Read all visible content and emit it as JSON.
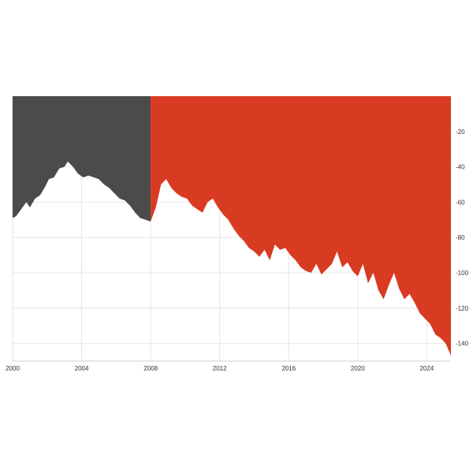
{
  "chart_data": {
    "type": "area",
    "title": "",
    "xlabel": "",
    "ylabel": "",
    "xlim": [
      2000,
      2025.4
    ],
    "ylim": [
      -150,
      0
    ],
    "x_ticks": [
      "2000",
      "2004",
      "2008",
      "2012",
      "2016",
      "2020",
      "2024"
    ],
    "y_ticks": [
      "-20",
      "-40",
      "-60",
      "-80",
      "-100",
      "-120",
      "-140"
    ],
    "grid": true,
    "axis_side": "right",
    "series": [
      {
        "color": "#4d4a4b",
        "x": [
          2000.0,
          2000.2,
          2000.5,
          2000.8,
          2001.0,
          2001.3,
          2001.6,
          2001.9,
          2002.1,
          2002.4,
          2002.7,
          2003.0,
          2003.2,
          2003.5,
          2003.8,
          2004.1,
          2004.4,
          2004.7,
          2005.0,
          2005.3,
          2005.6,
          2005.9,
          2006.2,
          2006.5,
          2006.8,
          2007.1,
          2007.4,
          2007.7,
          2008.0
        ],
        "values": [
          -69,
          -68,
          -64,
          -60,
          -63,
          -58,
          -56,
          -51,
          -47,
          -46,
          -41,
          -40,
          -37,
          -40,
          -44,
          -46,
          -45,
          -46,
          -47,
          -50,
          -52,
          -55,
          -58,
          -59,
          -62,
          -66,
          -69,
          -70,
          -71
        ]
      },
      {
        "color": "#d83b21",
        "x": [
          2008.0,
          2008.3,
          2008.6,
          2008.9,
          2009.2,
          2009.5,
          2009.8,
          2010.1,
          2010.4,
          2010.7,
          2011.0,
          2011.3,
          2011.6,
          2011.9,
          2012.2,
          2012.5,
          2012.8,
          2013.1,
          2013.4,
          2013.7,
          2014.0,
          2014.3,
          2014.6,
          2014.9,
          2015.2,
          2015.5,
          2015.8,
          2016.1,
          2016.4,
          2016.7,
          2017.0,
          2017.3,
          2017.6,
          2017.9,
          2018.2,
          2018.5,
          2018.8,
          2019.1,
          2019.4,
          2019.7,
          2020.0,
          2020.3,
          2020.6,
          2020.9,
          2021.2,
          2021.5,
          2021.8,
          2022.1,
          2022.4,
          2022.7,
          2023.0,
          2023.3,
          2023.6,
          2023.9,
          2024.2,
          2024.5,
          2024.8,
          2025.1,
          2025.4
        ],
        "values": [
          -71,
          -63,
          -50,
          -47,
          -52,
          -55,
          -57,
          -58,
          -62,
          -64,
          -66,
          -60,
          -58,
          -63,
          -67,
          -70,
          -75,
          -79,
          -82,
          -86,
          -88,
          -91,
          -87,
          -93,
          -84,
          -87,
          -86,
          -90,
          -93,
          -97,
          -99,
          -100,
          -95,
          -101,
          -98,
          -95,
          -88,
          -97,
          -94,
          -99,
          -102,
          -95,
          -106,
          -100,
          -110,
          -115,
          -107,
          -100,
          -109,
          -115,
          -112,
          -117,
          -123,
          -126,
          -129,
          -135,
          -137,
          -140,
          -147
        ]
      }
    ]
  }
}
